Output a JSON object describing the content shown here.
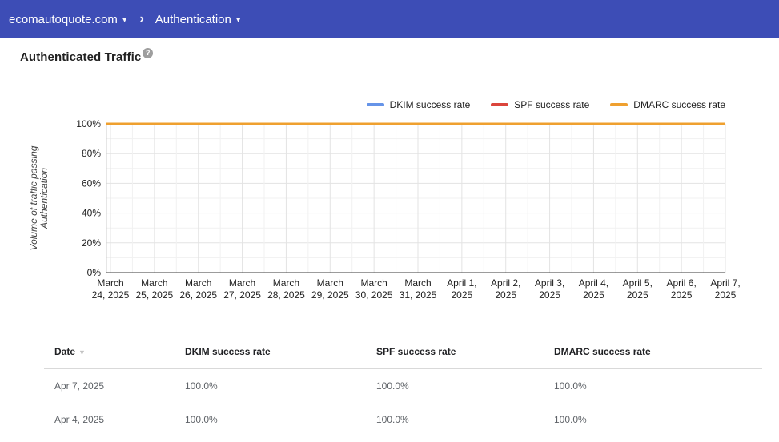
{
  "header": {
    "domain": "ecomautoquote.com",
    "section": "Authentication",
    "caret": "▾",
    "chevron": "›"
  },
  "page": {
    "title": "Authenticated Traffic",
    "help_glyph": "?"
  },
  "colors": {
    "appbar": "#3d4db6",
    "dkim": "#6694e8",
    "spf": "#db453c",
    "dmarc": "#efa02f"
  },
  "chart_data": {
    "type": "line",
    "title": "",
    "xlabel": "",
    "ylabel_lines": [
      "Volume of traffic passing",
      "Authentication"
    ],
    "ylim": [
      0,
      100
    ],
    "y_ticks": [
      "0%",
      "20%",
      "40%",
      "60%",
      "80%",
      "100%"
    ],
    "grid": true,
    "legend_position": "top-right",
    "categories": [
      [
        "March",
        "24, 2025"
      ],
      [
        "March",
        "25, 2025"
      ],
      [
        "March",
        "26, 2025"
      ],
      [
        "March",
        "27, 2025"
      ],
      [
        "March",
        "28, 2025"
      ],
      [
        "March",
        "29, 2025"
      ],
      [
        "March",
        "30, 2025"
      ],
      [
        "March",
        "31, 2025"
      ],
      [
        "April 1,",
        "2025"
      ],
      [
        "April 2,",
        "2025"
      ],
      [
        "April 3,",
        "2025"
      ],
      [
        "April 4,",
        "2025"
      ],
      [
        "April 5,",
        "2025"
      ],
      [
        "April 6,",
        "2025"
      ],
      [
        "April 7,",
        "2025"
      ]
    ],
    "series": [
      {
        "name": "DKIM success rate",
        "color": "#6694e8",
        "values": [
          100,
          100,
          100,
          100,
          100,
          100,
          100,
          100,
          100,
          100,
          100,
          100,
          100,
          100,
          100
        ]
      },
      {
        "name": "SPF success rate",
        "color": "#db453c",
        "values": [
          100,
          100,
          100,
          100,
          100,
          100,
          100,
          100,
          100,
          100,
          100,
          100,
          100,
          100,
          100
        ]
      },
      {
        "name": "DMARC success rate",
        "color": "#efa02f",
        "values": [
          100,
          100,
          100,
          100,
          100,
          100,
          100,
          100,
          100,
          100,
          100,
          100,
          100,
          100,
          100
        ]
      }
    ]
  },
  "table": {
    "columns": [
      "Date",
      "DKIM success rate",
      "SPF success rate",
      "DMARC success rate"
    ],
    "sort_icon": "▼",
    "rows": [
      [
        "Apr 7, 2025",
        "100.0%",
        "100.0%",
        "100.0%"
      ],
      [
        "Apr 4, 2025",
        "100.0%",
        "100.0%",
        "100.0%"
      ]
    ]
  }
}
